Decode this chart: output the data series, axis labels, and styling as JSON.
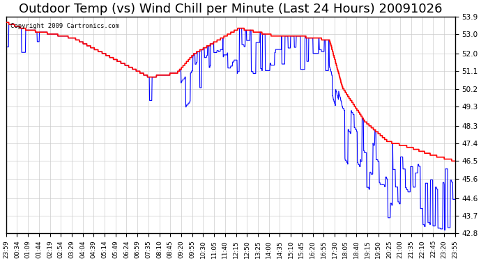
{
  "title": "Outdoor Temp (vs) Wind Chill per Minute (Last 24 Hours) 20091026",
  "copyright_text": "Copyright 2009 Cartronics.com",
  "y_min": 42.8,
  "y_max": 53.9,
  "y_ticks": [
    42.8,
    43.7,
    44.6,
    45.6,
    46.5,
    47.4,
    48.3,
    49.3,
    50.2,
    51.1,
    52.0,
    53.0,
    53.9
  ],
  "background_color": "#ffffff",
  "grid_color": "#cccccc",
  "red_line_color": "#ff0000",
  "blue_line_color": "#0000ff",
  "title_fontsize": 13,
  "x_tick_labels": [
    "23:59",
    "00:34",
    "01:09",
    "01:44",
    "02:19",
    "02:54",
    "03:29",
    "04:04",
    "04:39",
    "05:14",
    "05:49",
    "06:24",
    "06:59",
    "07:35",
    "08:10",
    "08:45",
    "09:20",
    "09:55",
    "10:30",
    "11:05",
    "11:40",
    "12:15",
    "12:50",
    "13:25",
    "14:00",
    "14:35",
    "15:10",
    "15:45",
    "16:20",
    "16:55",
    "17:30",
    "18:05",
    "18:40",
    "19:15",
    "19:50",
    "20:25",
    "21:00",
    "21:35",
    "22:10",
    "22:45",
    "23:20",
    "23:55"
  ],
  "n_points": 1440
}
